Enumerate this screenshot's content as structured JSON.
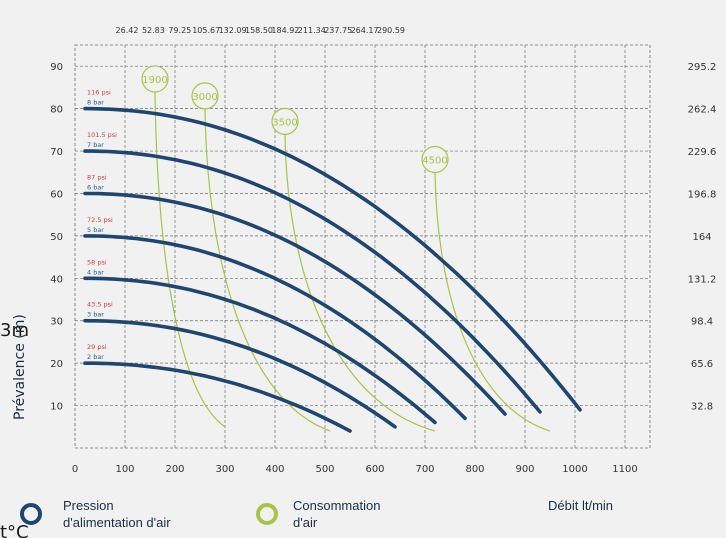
{
  "chart_data": {
    "type": "line",
    "ylabel": "Prévalence (m)",
    "xlabel": "Débit lt/min",
    "xlim": [
      0,
      1150
    ],
    "ylim": [
      0,
      95
    ],
    "x_ticks": [
      0,
      100,
      200,
      300,
      400,
      500,
      600,
      700,
      800,
      900,
      1000,
      1100
    ],
    "y_ticks": [
      10,
      20,
      30,
      40,
      50,
      60,
      70,
      80,
      90
    ],
    "top_ticks": [
      "26.42",
      "52.83",
      "79.25",
      "105.67",
      "132.09",
      "158.50",
      "184.92",
      "211.34",
      "237.75",
      "264.17",
      "290.59"
    ],
    "right_ticks": [
      "32.8",
      "65.6",
      "98.4",
      "131.2",
      "164",
      "196.8",
      "229.6",
      "262.4",
      "295.2"
    ],
    "grid": true,
    "series": [
      {
        "bar": "2 bar",
        "psi": "29 psi",
        "start_y": 20,
        "end_x": 550,
        "end_y": 4
      },
      {
        "bar": "3 bar",
        "psi": "43.5 psi",
        "start_y": 30,
        "end_x": 640,
        "end_y": 5
      },
      {
        "bar": "4 bar",
        "psi": "58 psi",
        "start_y": 40,
        "end_x": 720,
        "end_y": 6
      },
      {
        "bar": "5 bar",
        "psi": "72.5 psi",
        "start_y": 50,
        "end_x": 780,
        "end_y": 7
      },
      {
        "bar": "6 bar",
        "psi": "87 psi",
        "start_y": 60,
        "end_x": 860,
        "end_y": 8
      },
      {
        "bar": "7 bar",
        "psi": "101.5 psi",
        "start_y": 70,
        "end_x": 930,
        "end_y": 8.5
      },
      {
        "bar": "8 bar",
        "psi": "116 psi",
        "start_y": 80,
        "end_x": 1010,
        "end_y": 9
      }
    ],
    "air_consumption": [
      {
        "label": "1900",
        "top_x": 160,
        "top_y": 87,
        "bottom_x": 300,
        "bottom_y": 5
      },
      {
        "label": "3000",
        "top_x": 260,
        "top_y": 83,
        "bottom_x": 510,
        "bottom_y": 4
      },
      {
        "label": "3500",
        "top_x": 420,
        "top_y": 77,
        "bottom_x": 720,
        "bottom_y": 4
      },
      {
        "label": "4500",
        "top_x": 720,
        "top_y": 68,
        "bottom_x": 950,
        "bottom_y": 4
      }
    ],
    "legend": [
      {
        "label_line1": "Pression",
        "label_line2": "d'alimentation d'air",
        "color": "#1e466e"
      },
      {
        "label_line1": "Consommation",
        "label_line2": "d'air",
        "color": "#a8c24a"
      }
    ]
  },
  "colors": {
    "curve": "#1e466e",
    "air": "#a8c24a",
    "psi": "#c2404e",
    "bar": "#2b5a8a",
    "grid": "#6e6e6e"
  },
  "overlay_text": {
    "left_fragment": "3m",
    "bottom_fragment": "t°C"
  }
}
